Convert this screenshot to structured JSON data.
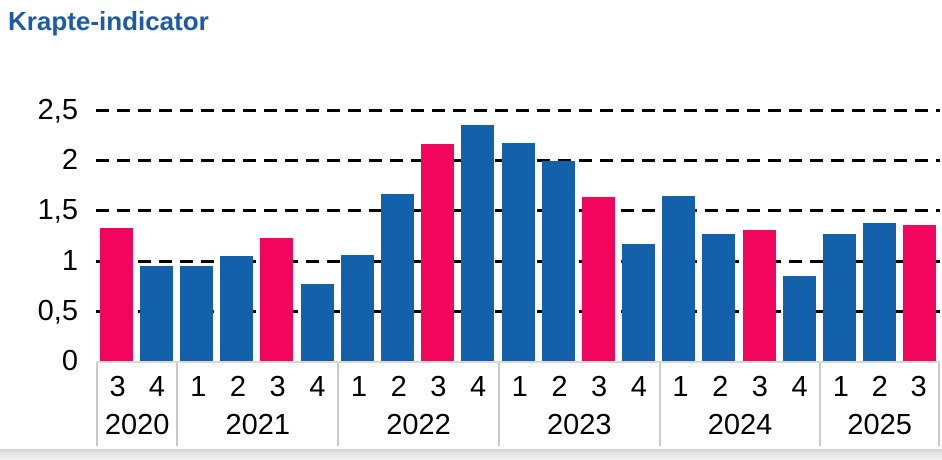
{
  "title": "Krapte-indicator",
  "colors": {
    "bar_blue": "#1360AB",
    "bar_pink": "#F2055C",
    "title_text": "#1B5BA8",
    "gridline": "#000000",
    "axis_line": "#D9D9D9",
    "group_separator": "#C9C9C9"
  },
  "chart_data": {
    "type": "bar",
    "title": "Krapte-indicator",
    "xlabel": "",
    "ylabel": "",
    "ylim": [
      0,
      2.5
    ],
    "grid": "horizontal-dashed",
    "legend_position": "none",
    "decimal_style": "comma",
    "yticks": [
      {
        "value": 0,
        "label": "0"
      },
      {
        "value": 0.5,
        "label": "0,5"
      },
      {
        "value": 1,
        "label": "1"
      },
      {
        "value": 1.5,
        "label": "1,5"
      },
      {
        "value": 2,
        "label": "2"
      },
      {
        "value": 2.5,
        "label": "2,5"
      }
    ],
    "groups": [
      {
        "year": "2020",
        "quarters": [
          {
            "label": "3",
            "value": 1.32,
            "pink": true
          },
          {
            "label": "4",
            "value": 0.95,
            "pink": false
          }
        ]
      },
      {
        "year": "2021",
        "quarters": [
          {
            "label": "1",
            "value": 0.95,
            "pink": false
          },
          {
            "label": "2",
            "value": 1.05,
            "pink": false
          },
          {
            "label": "3",
            "value": 1.23,
            "pink": true
          },
          {
            "label": "4",
            "value": 0.77,
            "pink": false
          }
        ]
      },
      {
        "year": "2022",
        "quarters": [
          {
            "label": "1",
            "value": 1.06,
            "pink": false
          },
          {
            "label": "2",
            "value": 1.66,
            "pink": false
          },
          {
            "label": "3",
            "value": 2.16,
            "pink": true
          },
          {
            "label": "4",
            "value": 2.35,
            "pink": false
          }
        ]
      },
      {
        "year": "2023",
        "quarters": [
          {
            "label": "1",
            "value": 2.17,
            "pink": false
          },
          {
            "label": "2",
            "value": 1.99,
            "pink": false
          },
          {
            "label": "3",
            "value": 1.63,
            "pink": true
          },
          {
            "label": "4",
            "value": 1.17,
            "pink": false
          }
        ]
      },
      {
        "year": "2024",
        "quarters": [
          {
            "label": "1",
            "value": 1.64,
            "pink": false
          },
          {
            "label": "2",
            "value": 1.26,
            "pink": false
          },
          {
            "label": "3",
            "value": 1.3,
            "pink": true
          },
          {
            "label": "4",
            "value": 0.85,
            "pink": false
          }
        ]
      },
      {
        "year": "2025",
        "quarters": [
          {
            "label": "1",
            "value": 1.26,
            "pink": false
          },
          {
            "label": "2",
            "value": 1.37,
            "pink": false
          },
          {
            "label": "3",
            "value": 1.35,
            "pink": true
          }
        ]
      }
    ]
  }
}
